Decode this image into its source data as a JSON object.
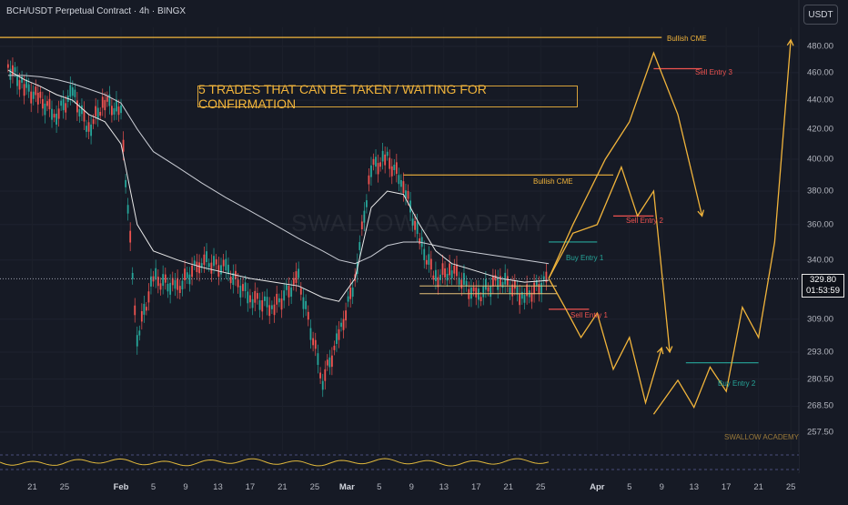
{
  "header": {
    "title": "BCH/USDT Perpetual Contract · 4h · BINGX",
    "currency_button": "USDT"
  },
  "banner_text": "5 TRADES THAT CAN BE TAKEN / WAITING FOR CONFIRMATION",
  "watermark": "SWALLOW ACADEMY",
  "watermark_small": "SWALLOW ACADEMY",
  "price_label": {
    "price": "329.80",
    "countdown": "01:53:59"
  },
  "annotations": {
    "bullish_cme_top": "Bullish CME",
    "sell_entry_3": "Sell Entry 3",
    "bullish_cme_mid": "Bullish CME",
    "sell_entry_2": "Sell Entry 2",
    "buy_entry_1": "Buy Entry 1",
    "sell_entry_1": "Sell Entry 1",
    "buy_entry_2": "Buy Entry 2"
  },
  "colors": {
    "background": "#161a25",
    "orange": "#f1b43b",
    "teal": "#26a69a",
    "red": "#ef5350",
    "buy_label": "#26a69a",
    "sell_label": "#ef5350"
  },
  "chart_data": {
    "type": "line",
    "title": "BCH/USDT Perpetual Contract · 4h · BINGX",
    "y_scale": "log",
    "ylim": [
      250,
      495
    ],
    "y_ticks": [
      "480.00",
      "460.00",
      "440.00",
      "420.00",
      "400.00",
      "380.00",
      "360.00",
      "340.00",
      "309.00",
      "293.00",
      "280.50",
      "268.50",
      "257.50"
    ],
    "y_tick_values": [
      480,
      460,
      440,
      420,
      400,
      380,
      360,
      340,
      309,
      293,
      280.5,
      268.5,
      257.5
    ],
    "x_ticks": [
      "21",
      "25",
      "Feb",
      "5",
      "9",
      "13",
      "17",
      "21",
      "25",
      "Mar",
      "5",
      "9",
      "13",
      "17",
      "21",
      "25",
      "Apr",
      "5",
      "9",
      "13",
      "17",
      "21",
      "25"
    ],
    "x_bold": [
      "Feb",
      "Mar",
      "Apr"
    ],
    "current_price": 329.8,
    "price_path": {
      "name": "BCH/USDT",
      "x": [
        "Jan 18",
        "Jan 20",
        "Jan 22",
        "Jan 24",
        "Jan 26",
        "Jan 28",
        "Jan 30",
        "Feb 1",
        "Feb 3",
        "Feb 5",
        "Feb 8",
        "Feb 11",
        "Feb 14",
        "Feb 17",
        "Feb 20",
        "Feb 23",
        "Feb 26",
        "Feb 28",
        "Mar 2",
        "Mar 4",
        "Mar 6",
        "Mar 8",
        "Mar 10",
        "Mar 12",
        "Mar 14",
        "Mar 17",
        "Mar 20",
        "Mar 23",
        "Mar 26"
      ],
      "values": [
        465,
        450,
        440,
        430,
        445,
        420,
        440,
        430,
        300,
        330,
        325,
        340,
        335,
        320,
        315,
        330,
        280,
        300,
        330,
        395,
        400,
        385,
        350,
        330,
        335,
        320,
        330,
        320,
        330
      ]
    },
    "ma_fast": [
      462,
      455,
      450,
      444,
      440,
      430,
      425,
      410,
      360,
      345,
      340,
      336,
      333,
      330,
      328,
      326,
      320,
      318,
      330,
      370,
      380,
      378,
      360,
      345,
      338,
      334,
      330,
      328,
      329
    ],
    "ma_slow": [
      458,
      458,
      457,
      455,
      452,
      448,
      444,
      438,
      420,
      405,
      395,
      385,
      376,
      368,
      360,
      352,
      345,
      340,
      338,
      342,
      348,
      350,
      350,
      348,
      346,
      344,
      342,
      340,
      338
    ],
    "projection_paths": [
      {
        "name": "sell-entry-1-path",
        "x": [
          "Mar 26",
          "Mar 28",
          "Mar 30",
          "Apr 1",
          "Apr 3",
          "Apr 5",
          "Apr 7",
          "Apr 9"
        ],
        "values": [
          330,
          315,
          300,
          312,
          285,
          300,
          270,
          295
        ]
      },
      {
        "name": "sell-entry-2-path",
        "x": [
          "Mar 26",
          "Mar 29",
          "Apr 1",
          "Apr 4",
          "Apr 6",
          "Apr 8",
          "Apr 10"
        ],
        "values": [
          330,
          355,
          360,
          395,
          365,
          380,
          293
        ]
      },
      {
        "name": "sell-entry-3-path",
        "x": [
          "Mar 26",
          "Mar 29",
          "Apr 2",
          "Apr 5",
          "Apr 8",
          "Apr 11",
          "Apr 14"
        ],
        "values": [
          330,
          360,
          400,
          425,
          475,
          430,
          365
        ]
      },
      {
        "name": "buy-entry-2-path",
        "x": [
          "Apr 8",
          "Apr 11",
          "Apr 13",
          "Apr 15",
          "Apr 17",
          "Apr 19",
          "Apr 21",
          "Apr 23",
          "Apr 25"
        ],
        "values": [
          265,
          280,
          268,
          286,
          275,
          315,
          300,
          350,
          485
        ]
      }
    ],
    "levels": [
      {
        "name": "Bullish CME",
        "value": 487,
        "color": "#f1b43b"
      },
      {
        "name": "Sell Entry 3",
        "value": 463,
        "color": "#ef5350"
      },
      {
        "name": "Bullish CME",
        "value": 390,
        "color": "#f1b43b"
      },
      {
        "name": "Sell Entry 2",
        "value": 365,
        "color": "#ef5350"
      },
      {
        "name": "Buy Entry 1",
        "value": 350,
        "color": "#26a69a"
      },
      {
        "name": "Sell Entry 1",
        "value": 314,
        "color": "#ef5350"
      },
      {
        "name": "Buy Entry 2",
        "value": 288,
        "color": "#26a69a"
      }
    ],
    "grid": true,
    "legend": "none"
  }
}
